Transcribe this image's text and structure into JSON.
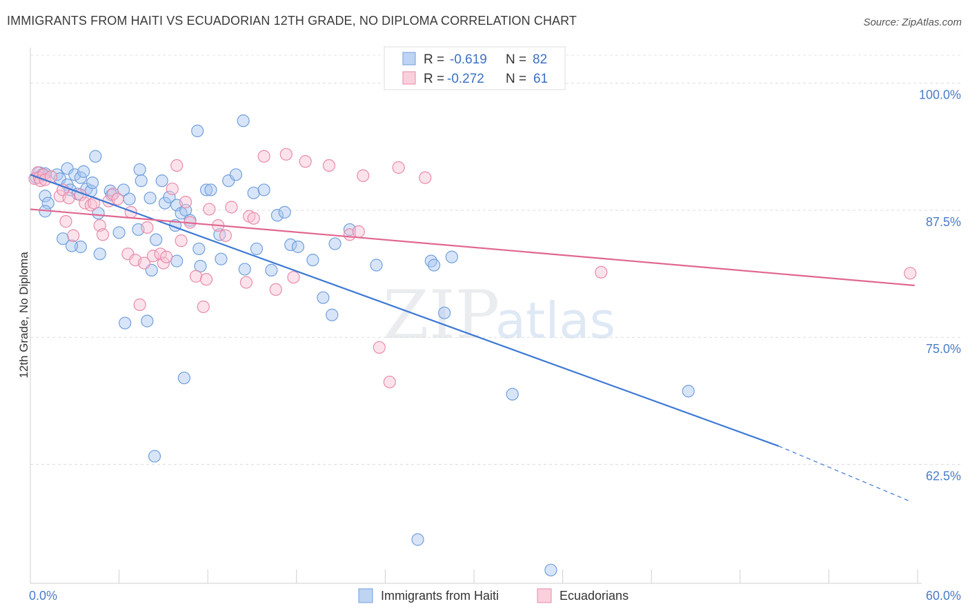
{
  "header": {
    "title": "IMMIGRANTS FROM HAITI VS ECUADORIAN 12TH GRADE, NO DIPLOMA CORRELATION CHART",
    "source": "Source: ZipAtlas.com"
  },
  "watermark": {
    "zip": "ZIP",
    "atlas": "atlas"
  },
  "legend_top": {
    "rows": [
      {
        "r_label": "R =",
        "r_value": "-0.619",
        "n_label": "N =",
        "n_value": "82",
        "color": "#a9c6ef",
        "stroke": "#6f9fdd"
      },
      {
        "r_label": "R =",
        "r_value": "-0.272",
        "n_label": "N =",
        "n_value": "61",
        "color": "#f8c0d2",
        "stroke": "#e88aaa"
      }
    ]
  },
  "legend_bottom": {
    "items": [
      {
        "label": "Immigrants from Haiti",
        "color": "#a9c6ef",
        "stroke": "#6f9fdd"
      },
      {
        "label": "Ecuadorians",
        "color": "#f8c0d2",
        "stroke": "#e88aaa"
      }
    ]
  },
  "chart_data": {
    "type": "scatter",
    "title": "IMMIGRANTS FROM HAITI VS ECUADORIAN 12TH GRADE, NO DIPLOMA CORRELATION CHART",
    "xlabel": "",
    "ylabel": "12th Grade, No Diploma",
    "xlim": [
      0,
      60
    ],
    "ylim": [
      50.8,
      103.5
    ],
    "x_tick_labels": [
      {
        "value": 0,
        "label": "0.0%"
      },
      {
        "value": 60,
        "label": "60.0%"
      }
    ],
    "y_tick_labels": [
      {
        "value": 100,
        "label": "100.0%"
      },
      {
        "value": 87.5,
        "label": "87.5%"
      },
      {
        "value": 75,
        "label": "75.0%"
      },
      {
        "value": 62.5,
        "label": "62.5%"
      }
    ],
    "grid_y": [
      100,
      87.5,
      75,
      62.5
    ],
    "x_minor_ticks": [
      0,
      6,
      12,
      18,
      24,
      30,
      36,
      42,
      48,
      54,
      60
    ],
    "series": [
      {
        "name": "Immigrants from Haiti",
        "color": "#a9c6ef",
        "stroke": "#6f9fdd",
        "line_color": "#3b78d4",
        "trend": {
          "x0": 0,
          "y0": 91.0,
          "x1": 50.6,
          "y1": 64.3,
          "dash_to_x": 59.6,
          "dash_to_y": 58.8
        },
        "points": [
          [
            0.4,
            90.7
          ],
          [
            0.6,
            91.2
          ],
          [
            0.8,
            91.0
          ],
          [
            1.0,
            91.1
          ],
          [
            1.0,
            88.9
          ],
          [
            1.2,
            88.2
          ],
          [
            1.0,
            87.4
          ],
          [
            1.8,
            91.0
          ],
          [
            2.0,
            90.6
          ],
          [
            2.5,
            91.6
          ],
          [
            2.5,
            90.0
          ],
          [
            3.0,
            91.0
          ],
          [
            3.4,
            90.7
          ],
          [
            3.6,
            91.3
          ],
          [
            2.7,
            89.5
          ],
          [
            3.2,
            89.1
          ],
          [
            3.8,
            89.6
          ],
          [
            4.1,
            89.4
          ],
          [
            4.2,
            90.2
          ],
          [
            4.6,
            87.2
          ],
          [
            4.4,
            92.8
          ],
          [
            2.2,
            84.7
          ],
          [
            3.4,
            83.9
          ],
          [
            5.4,
            89.4
          ],
          [
            5.5,
            89.0
          ],
          [
            6.3,
            89.5
          ],
          [
            6.0,
            85.3
          ],
          [
            7.3,
            85.6
          ],
          [
            7.4,
            91.5
          ],
          [
            7.5,
            90.4
          ],
          [
            8.1,
            88.7
          ],
          [
            8.5,
            84.6
          ],
          [
            8.2,
            81.6
          ],
          [
            8.9,
            90.4
          ],
          [
            9.1,
            88.2
          ],
          [
            9.4,
            88.8
          ],
          [
            9.9,
            88.0
          ],
          [
            9.9,
            82.5
          ],
          [
            10.2,
            87.2
          ],
          [
            10.5,
            87.5
          ],
          [
            10.8,
            86.5
          ],
          [
            11.4,
            83.7
          ],
          [
            11.5,
            82.0
          ],
          [
            11.3,
            95.3
          ],
          [
            11.9,
            89.5
          ],
          [
            12.2,
            89.5
          ],
          [
            12.8,
            85.1
          ],
          [
            12.9,
            82.7
          ],
          [
            13.4,
            90.4
          ],
          [
            13.9,
            91.0
          ],
          [
            14.4,
            96.3
          ],
          [
            14.5,
            81.7
          ],
          [
            15.1,
            89.2
          ],
          [
            15.3,
            83.7
          ],
          [
            15.8,
            89.5
          ],
          [
            16.3,
            81.6
          ],
          [
            16.7,
            87.0
          ],
          [
            17.2,
            87.3
          ],
          [
            7.9,
            76.6
          ],
          [
            6.4,
            76.4
          ],
          [
            17.6,
            84.1
          ],
          [
            18.1,
            83.9
          ],
          [
            19.1,
            82.6
          ],
          [
            19.8,
            78.9
          ],
          [
            20.4,
            77.2
          ],
          [
            20.6,
            84.2
          ],
          [
            21.6,
            85.6
          ],
          [
            23.4,
            82.1
          ],
          [
            27.1,
            82.5
          ],
          [
            27.3,
            82.1
          ],
          [
            28.5,
            82.9
          ],
          [
            28.0,
            77.4
          ],
          [
            10.4,
            71.0
          ],
          [
            8.4,
            63.3
          ],
          [
            32.6,
            69.4
          ],
          [
            44.5,
            69.7
          ],
          [
            26.2,
            55.1
          ],
          [
            35.2,
            52.1
          ],
          [
            4.7,
            83.2
          ],
          [
            2.8,
            84.0
          ],
          [
            6.7,
            88.6
          ],
          [
            9.8,
            86.0
          ]
        ]
      },
      {
        "name": "Ecuadorians",
        "color": "#f8c0d2",
        "stroke": "#e88aaa",
        "line_color": "#e0668f",
        "trend": {
          "x0": 0,
          "y0": 87.6,
          "x1": 59.8,
          "y1": 80.1
        },
        "points": [
          [
            0.3,
            90.6
          ],
          [
            0.5,
            91.2
          ],
          [
            0.6,
            90.7
          ],
          [
            0.7,
            90.4
          ],
          [
            0.9,
            91.0
          ],
          [
            1.0,
            90.5
          ],
          [
            1.4,
            90.8
          ],
          [
            2.0,
            88.9
          ],
          [
            2.2,
            89.5
          ],
          [
            2.4,
            86.4
          ],
          [
            2.6,
            88.7
          ],
          [
            2.9,
            85.0
          ],
          [
            3.4,
            89.0
          ],
          [
            3.7,
            88.2
          ],
          [
            4.1,
            88.0
          ],
          [
            4.3,
            88.2
          ],
          [
            4.7,
            86.0
          ],
          [
            4.9,
            85.1
          ],
          [
            5.3,
            88.4
          ],
          [
            5.6,
            89.1
          ],
          [
            5.9,
            88.6
          ],
          [
            6.6,
            83.2
          ],
          [
            6.8,
            87.3
          ],
          [
            7.1,
            82.6
          ],
          [
            7.4,
            78.2
          ],
          [
            7.7,
            82.3
          ],
          [
            7.9,
            85.8
          ],
          [
            8.3,
            83.0
          ],
          [
            8.8,
            83.2
          ],
          [
            9.0,
            82.3
          ],
          [
            9.2,
            82.9
          ],
          [
            9.6,
            89.6
          ],
          [
            9.9,
            91.9
          ],
          [
            10.2,
            84.5
          ],
          [
            10.5,
            88.3
          ],
          [
            10.8,
            86.3
          ],
          [
            11.2,
            81.0
          ],
          [
            11.7,
            78.0
          ],
          [
            11.9,
            80.7
          ],
          [
            12.1,
            87.6
          ],
          [
            12.7,
            86.0
          ],
          [
            13.2,
            85.0
          ],
          [
            13.6,
            87.8
          ],
          [
            14.6,
            80.4
          ],
          [
            14.8,
            86.9
          ],
          [
            15.1,
            86.7
          ],
          [
            15.8,
            92.8
          ],
          [
            16.6,
            79.7
          ],
          [
            17.3,
            93.0
          ],
          [
            17.8,
            80.9
          ],
          [
            18.6,
            92.3
          ],
          [
            20.2,
            91.9
          ],
          [
            21.6,
            85.1
          ],
          [
            22.2,
            85.4
          ],
          [
            22.5,
            90.9
          ],
          [
            23.6,
            74.0
          ],
          [
            24.3,
            70.6
          ],
          [
            24.9,
            91.7
          ],
          [
            26.7,
            90.7
          ],
          [
            38.6,
            81.4
          ],
          [
            59.5,
            81.3
          ]
        ]
      }
    ]
  }
}
